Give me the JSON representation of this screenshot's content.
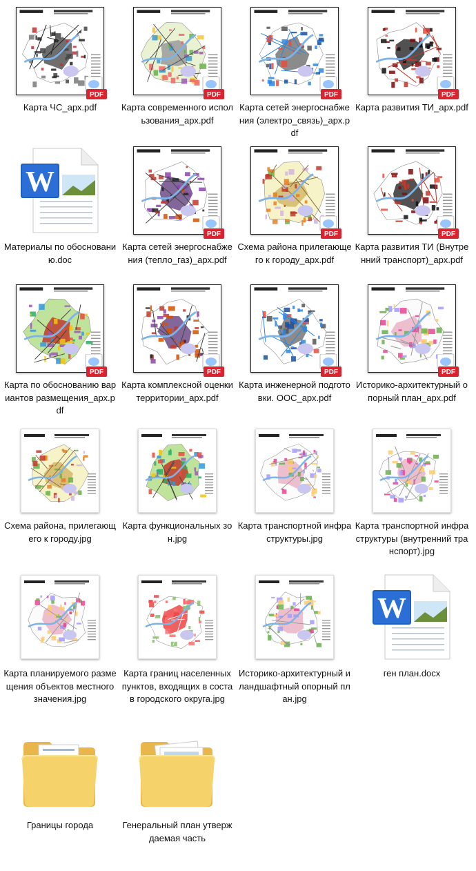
{
  "files": [
    {
      "label": "Карта ЧС_арх.pdf",
      "kind": "map-pdf",
      "style": "dark",
      "icon": "pdf-file-icon"
    },
    {
      "label": "Карта современного использования_арх.pdf",
      "kind": "map-pdf",
      "style": "green",
      "icon": "pdf-file-icon"
    },
    {
      "label": "Карта сетей энергоснабжения (электро_связь)_арх.pdf",
      "kind": "map-pdf",
      "style": "blue",
      "icon": "pdf-file-icon"
    },
    {
      "label": "Карта развития ТИ_арх.pdf",
      "kind": "map-pdf",
      "style": "red",
      "icon": "pdf-file-icon"
    },
    {
      "label": "Материалы по обоснованию.doc",
      "kind": "word-doc",
      "icon": "word-document-icon"
    },
    {
      "label": "Карта сетей энергоснабжения (тепло_газ)_арх.pdf",
      "kind": "map-pdf",
      "style": "purple",
      "icon": "pdf-file-icon"
    },
    {
      "label": "Схема района прилегающего к городу_арх.pdf",
      "kind": "map-pdf",
      "style": "yellow",
      "icon": "pdf-file-icon"
    },
    {
      "label": "Карта развития ТИ (Внутренний транспорт)_арх.pdf",
      "kind": "map-pdf",
      "style": "red",
      "icon": "pdf-file-icon"
    },
    {
      "label": "Карта по обоснованию вариантов размещения_арх.pdf",
      "kind": "map-pdf",
      "style": "greenred",
      "icon": "pdf-file-icon"
    },
    {
      "label": "Карта комплексной оценки территории_арх.pdf",
      "kind": "map-pdf",
      "style": "purple",
      "icon": "pdf-file-icon"
    },
    {
      "label": "Карта инженерной подготовки. ООС_арх.pdf",
      "kind": "map-pdf",
      "style": "blue",
      "icon": "pdf-file-icon"
    },
    {
      "label": "Историко-архитектурный опорный план_арх.pdf",
      "kind": "map-pdf",
      "style": "light",
      "icon": "pdf-file-icon"
    },
    {
      "label": "Схема района, прилегающего к городу.jpg",
      "kind": "map-jpg",
      "style": "yellow",
      "icon": "image-file-icon"
    },
    {
      "label": "Карта функциональных зон.jpg",
      "kind": "map-jpg",
      "style": "greenred",
      "icon": "image-file-icon"
    },
    {
      "label": "Карта транспортной инфраструктуры.jpg",
      "kind": "map-jpg",
      "style": "light",
      "icon": "image-file-icon"
    },
    {
      "label": "Карта транспортной инфраструктуры (внутренний транспорт).jpg",
      "kind": "map-jpg",
      "style": "light",
      "icon": "image-file-icon"
    },
    {
      "label": "Карта планируемого размещения объектов местного значения.jpg",
      "kind": "map-jpg",
      "style": "light",
      "icon": "image-file-icon"
    },
    {
      "label": "Карта границ населенных пунктов, входящих в состав городского округа.jpg",
      "kind": "map-jpg",
      "style": "redfill",
      "icon": "image-file-icon"
    },
    {
      "label": "Историко-архитектурный и ландшафтный опорный план.jpg",
      "kind": "map-jpg",
      "style": "light",
      "icon": "image-file-icon"
    },
    {
      "label": "ген план.docx",
      "kind": "word-doc",
      "icon": "word-document-icon"
    },
    {
      "label": "Границы города",
      "kind": "folder",
      "icon": "folder-icon"
    },
    {
      "label": "Генеральный план утверждаемая часть",
      "kind": "folder-docs",
      "icon": "folder-icon"
    }
  ],
  "colors": {
    "pdf_red": "#d9232e",
    "word_blue": "#1f5fbf",
    "folder_yellow": "#f2c94c",
    "text": "#111111"
  }
}
